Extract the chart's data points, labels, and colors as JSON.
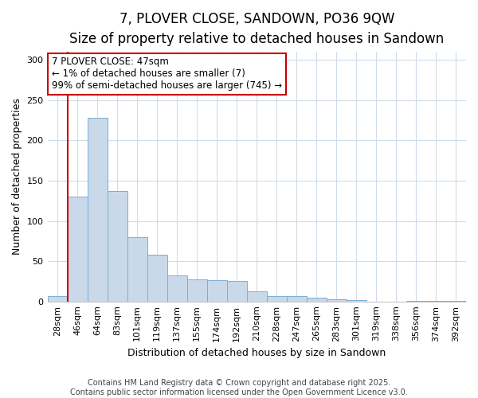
{
  "title": "7, PLOVER CLOSE, SANDOWN, PO36 9QW",
  "subtitle": "Size of property relative to detached houses in Sandown",
  "xlabel": "Distribution of detached houses by size in Sandown",
  "ylabel": "Number of detached properties",
  "categories": [
    "28sqm",
    "46sqm",
    "64sqm",
    "83sqm",
    "101sqm",
    "119sqm",
    "137sqm",
    "155sqm",
    "174sqm",
    "192sqm",
    "210sqm",
    "228sqm",
    "247sqm",
    "265sqm",
    "283sqm",
    "301sqm",
    "319sqm",
    "338sqm",
    "356sqm",
    "374sqm",
    "392sqm"
  ],
  "values": [
    7,
    130,
    228,
    137,
    80,
    58,
    32,
    27,
    26,
    25,
    13,
    7,
    7,
    5,
    3,
    2,
    0,
    0,
    1,
    1,
    1
  ],
  "bar_color": "#c9d9ea",
  "bar_edge_color": "#7aaed6",
  "annotation_text": "7 PLOVER CLOSE: 47sqm\n← 1% of detached houses are smaller (7)\n99% of semi-detached houses are larger (745) →",
  "annotation_box_facecolor": "#ffffff",
  "annotation_box_edgecolor": "#cc0000",
  "vline_x_index": 1,
  "vline_color": "#cc0000",
  "ylim": [
    0,
    310
  ],
  "yticks": [
    0,
    50,
    100,
    150,
    200,
    250,
    300
  ],
  "plot_bg_color": "#ffffff",
  "fig_bg_color": "#ffffff",
  "grid_color": "#d0dce8",
  "footer_line1": "Contains HM Land Registry data © Crown copyright and database right 2025.",
  "footer_line2": "Contains public sector information licensed under the Open Government Licence v3.0.",
  "title_fontsize": 12,
  "subtitle_fontsize": 10,
  "axis_label_fontsize": 9,
  "tick_fontsize": 8,
  "annotation_fontsize": 8.5,
  "footer_fontsize": 7
}
